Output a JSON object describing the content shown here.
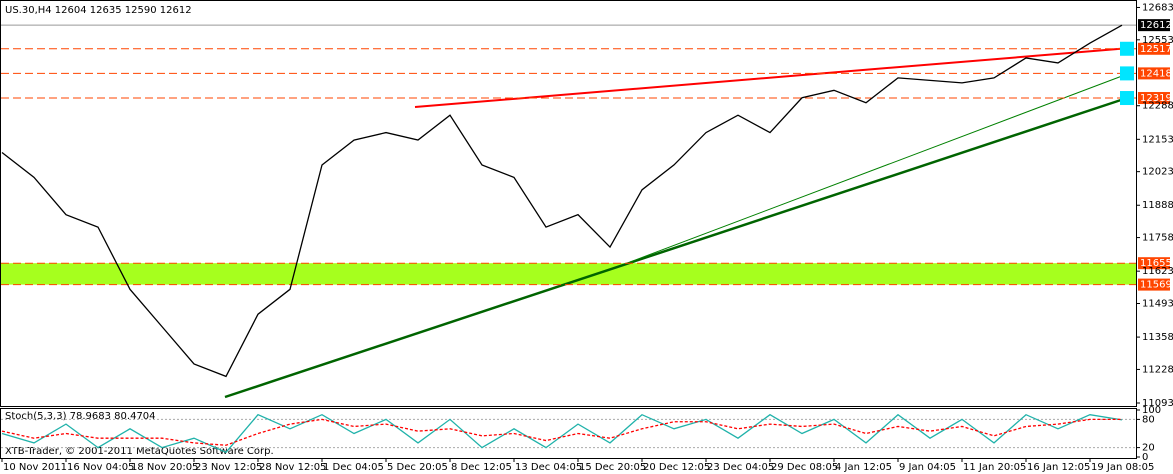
{
  "chart_data": [
    {
      "type": "line",
      "title": "US.30,H4 12604 12635 12590 12612",
      "categories": [
        "10 Nov 2011",
        null,
        "16 Nov 04:05",
        null,
        "18 Nov 20:05",
        null,
        "23 Nov 12:05",
        null,
        "28 Nov 12:05",
        null,
        "1 Dec 04:05",
        null,
        "5 Dec 20:05",
        null,
        "8 Dec 12:05",
        null,
        "13 Dec 04:05",
        null,
        "15 Dec 20:05",
        null,
        "20 Dec 12:05",
        null,
        "23 Dec 04:05",
        null,
        "29 Dec 08:05",
        null,
        "4 Jan 12:05",
        null,
        "9 Jan 04:05",
        null,
        "11 Jan 20:05",
        null,
        "16 Jan 12:05",
        null,
        "19 Jan 08:05",
        null
      ],
      "series": [
        {
          "color": "#000000",
          "values": [
            12100,
            12000,
            11850,
            11800,
            11550,
            11400,
            11250,
            11200,
            11450,
            11550,
            12050,
            12150,
            12180,
            12150,
            12250,
            12050,
            12000,
            11800,
            11850,
            11720,
            11950,
            12050,
            12180,
            12250,
            12180,
            12320,
            12350,
            12300,
            12400,
            12390,
            12380,
            12400,
            12480,
            12460,
            12540,
            12612
          ]
        }
      ],
      "ylim": [
        11085,
        12705
      ],
      "yticks": [
        12683,
        12553,
        12288,
        12153,
        12023,
        11888,
        11758,
        11623,
        11493,
        11358,
        11228,
        11093
      ],
      "current_price": 12612,
      "levels": [
        12517,
        12418,
        12319,
        11655,
        11569
      ],
      "level_color": "#ff4500",
      "zone_color": "#a6ff1e"
    },
    {
      "type": "line",
      "title": "Stoch(5,3,3) 78.9683 80.4704",
      "footer": "XTB-Trader, © 2001-2011 MetaQuotes Software Corp.",
      "series": [
        {
          "color": "#20b2aa",
          "values": [
            50,
            30,
            70,
            20,
            60,
            20,
            40,
            10,
            90,
            60,
            90,
            50,
            80,
            30,
            80,
            20,
            60,
            20,
            70,
            30,
            90,
            60,
            80,
            40,
            90,
            50,
            80,
            30,
            90,
            40,
            80,
            30,
            90,
            60,
            90,
            79
          ]
        },
        {
          "color": "#ff0000",
          "values": [
            55,
            40,
            50,
            40,
            40,
            40,
            30,
            25,
            50,
            70,
            80,
            65,
            70,
            55,
            60,
            45,
            50,
            35,
            50,
            40,
            60,
            75,
            75,
            60,
            70,
            65,
            70,
            50,
            65,
            55,
            65,
            45,
            65,
            70,
            80,
            80
          ]
        }
      ],
      "ylim": [
        0,
        100
      ],
      "yticks": [
        100,
        80,
        20,
        0
      ]
    }
  ]
}
